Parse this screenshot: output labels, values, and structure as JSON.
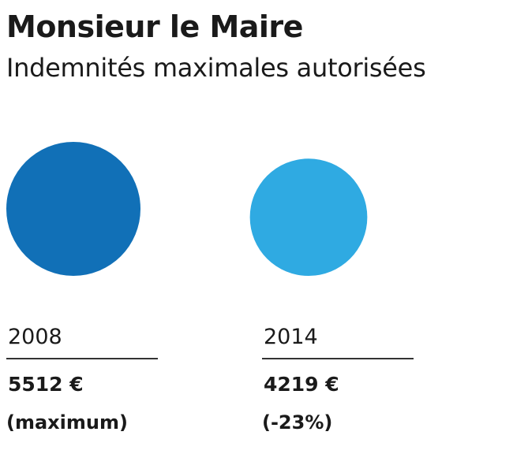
{
  "chart_data": {
    "type": "bubble",
    "title": "Monsieur le Maire",
    "subtitle": "Indemnités maximales autorisées",
    "categories": [
      "2008",
      "2014"
    ],
    "values": [
      5512,
      4219
    ],
    "series": [
      {
        "values": [
          5512,
          4219
        ],
        "value_labels": [
          "5512 €",
          "4219 €"
        ],
        "notes": [
          "(maximum)",
          "(-23%)"
        ],
        "colors": [
          "#1170b7",
          "#2faae2"
        ]
      }
    ],
    "grid": false,
    "legend": "none"
  }
}
